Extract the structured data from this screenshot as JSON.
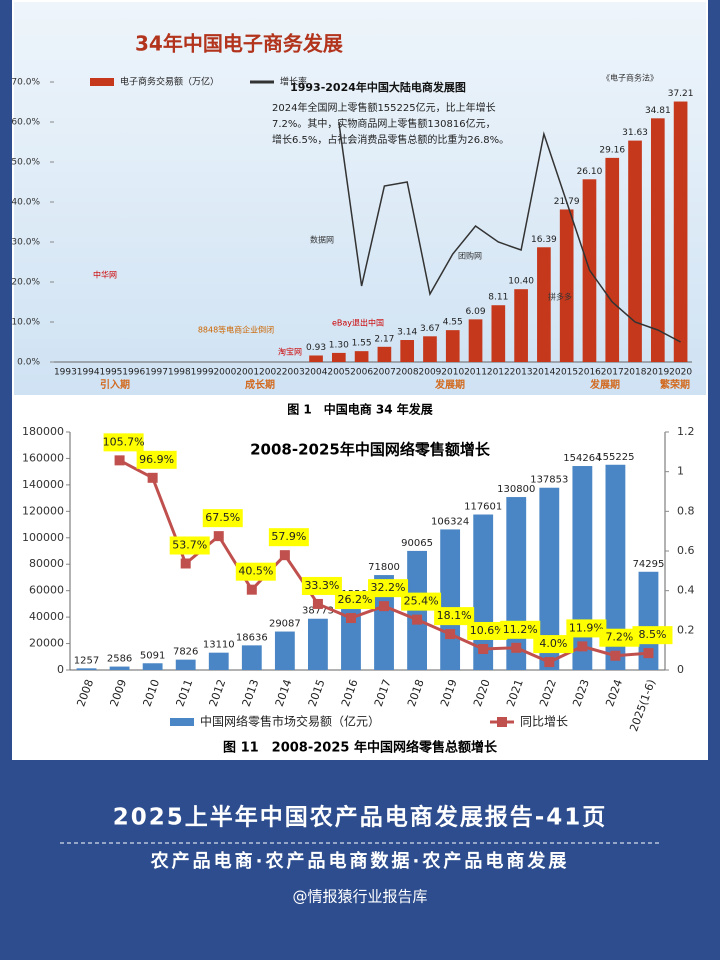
{
  "chart_data": [
    {
      "type": "combo",
      "title": "34年中国电子商务发展",
      "subtitle": "1993-2024年中国大陆电商发展图",
      "notes": [
        "2024年全国网上零售额155225亿元，比上年增长",
        "7.2%。其中，实物商品网上零售额130816亿元，",
        "增长6.5%，占社会消费品零售总额的比重为26.8%。"
      ],
      "categories": [
        "1993",
        "1994",
        "1995",
        "1996",
        "1997",
        "1998",
        "1999",
        "2000",
        "2001",
        "2002",
        "2003",
        "2004",
        "2005",
        "2006",
        "2007",
        "2008",
        "2009",
        "2010",
        "2011",
        "2012",
        "2013",
        "2014",
        "2015",
        "2016",
        "2017",
        "2018",
        "2019",
        "2020"
      ],
      "series": [
        {
          "name": "电子商务交易额（万亿）",
          "type": "bar",
          "axis": "y2",
          "color": "#c5381c",
          "values": [
            null,
            null,
            null,
            null,
            null,
            null,
            null,
            null,
            null,
            null,
            null,
            0.93,
            1.3,
            1.55,
            2.17,
            3.14,
            3.67,
            4.55,
            6.09,
            8.11,
            10.4,
            16.39,
            21.79,
            26.1,
            29.16,
            31.63,
            34.81,
            37.21
          ],
          "value_labels": [
            null,
            null,
            null,
            null,
            null,
            null,
            null,
            null,
            null,
            null,
            null,
            "0.93",
            "1.30",
            "1.55",
            "2.17",
            "3.14",
            "3.67",
            "4.55",
            "6.09",
            "8.11",
            "10.40",
            "16.39",
            "21.79",
            "26.10",
            "29.16",
            "31.63",
            "34.81",
            "37.21"
          ]
        },
        {
          "name": "增长率",
          "type": "line",
          "axis": "y",
          "color": "#333333",
          "values": [
            null,
            null,
            null,
            null,
            null,
            null,
            null,
            null,
            null,
            null,
            null,
            null,
            60,
            19,
            44,
            45,
            17,
            27,
            34,
            30,
            28,
            57,
            40,
            23,
            15,
            10,
            8,
            5
          ]
        }
      ],
      "ylim": [
        0,
        70
      ],
      "yticks": [
        {
          "value": 0,
          "label": "0.0%"
        },
        {
          "value": 10,
          "label": "10.0%"
        },
        {
          "value": 20,
          "label": "20.0%"
        },
        {
          "value": 30,
          "label": "30.0%"
        },
        {
          "value": 40,
          "label": "40.0%"
        },
        {
          "value": 50,
          "label": "50.0%"
        },
        {
          "value": 60,
          "label": "60.0%"
        },
        {
          "value": 70,
          "label": "70.0%"
        }
      ],
      "y2lim": [
        0,
        40
      ],
      "grid": false,
      "legend": "top-left",
      "annotations": [
        "中华网",
        "8848等电商企业倒闭",
        "淘宝网",
        "eBay退出中国",
        "数据网",
        "团购网",
        "拼多多",
        "《电子商务法》",
        "引入期",
        "成长期",
        "发展期",
        "发展期",
        "繁荣期"
      ],
      "caption": "图 1　中国电商 34 年发展"
    },
    {
      "type": "combo",
      "title": "2008-2025年中国网络零售额增长",
      "categories": [
        "2008",
        "2009",
        "2010",
        "2011",
        "2012",
        "2013",
        "2014",
        "2015",
        "2016",
        "2017",
        "2018",
        "2019",
        "2020",
        "2021",
        "2022",
        "2023",
        "2024",
        "2025(1-6)"
      ],
      "series": [
        {
          "name": "中国网络零售市场交易额（亿元）",
          "type": "bar",
          "axis": "y",
          "color": "#4a86c5",
          "values": [
            1257,
            2586,
            5091,
            7826,
            13110,
            18636,
            29087,
            38773,
            51556,
            71800,
            90065,
            106324,
            117601,
            130800,
            137853,
            154264,
            155225,
            74295
          ]
        },
        {
          "name": "同比增长",
          "type": "line",
          "axis": "y2",
          "color": "#c0504d",
          "values": [
            null,
            1.057,
            0.969,
            0.537,
            0.675,
            0.405,
            0.579,
            0.333,
            0.262,
            0.322,
            0.254,
            0.181,
            0.106,
            0.112,
            0.04,
            0.119,
            0.072,
            0.085
          ],
          "value_labels": [
            null,
            "105.7%",
            "96.9%",
            "53.7%",
            "67.5%",
            "40.5%",
            "57.9%",
            "33.3%",
            "26.2%",
            "32.2%",
            "25.4%",
            "18.1%",
            "10.6%",
            "11.2%",
            "4.0%",
            "11.9%",
            "7.2%",
            "8.5%"
          ]
        }
      ],
      "ylim": [
        0,
        180000
      ],
      "yticks": [
        0,
        20000,
        40000,
        60000,
        80000,
        100000,
        120000,
        140000,
        160000,
        180000
      ],
      "y2lim": [
        0,
        1.2
      ],
      "y2ticks": [
        0,
        0.2,
        0.4,
        0.6,
        0.8,
        1,
        1.2
      ],
      "grid": false,
      "legend": "bottom",
      "caption": "图 11　2008-2025 年中国网络零售总额增长"
    }
  ],
  "banner": {
    "title": "2025上半年中国农产品电商发展报告-41页",
    "subtitle": "农产品电商·农产品电商数据·农产品电商发展",
    "source": "@情报猿行业报告库"
  }
}
